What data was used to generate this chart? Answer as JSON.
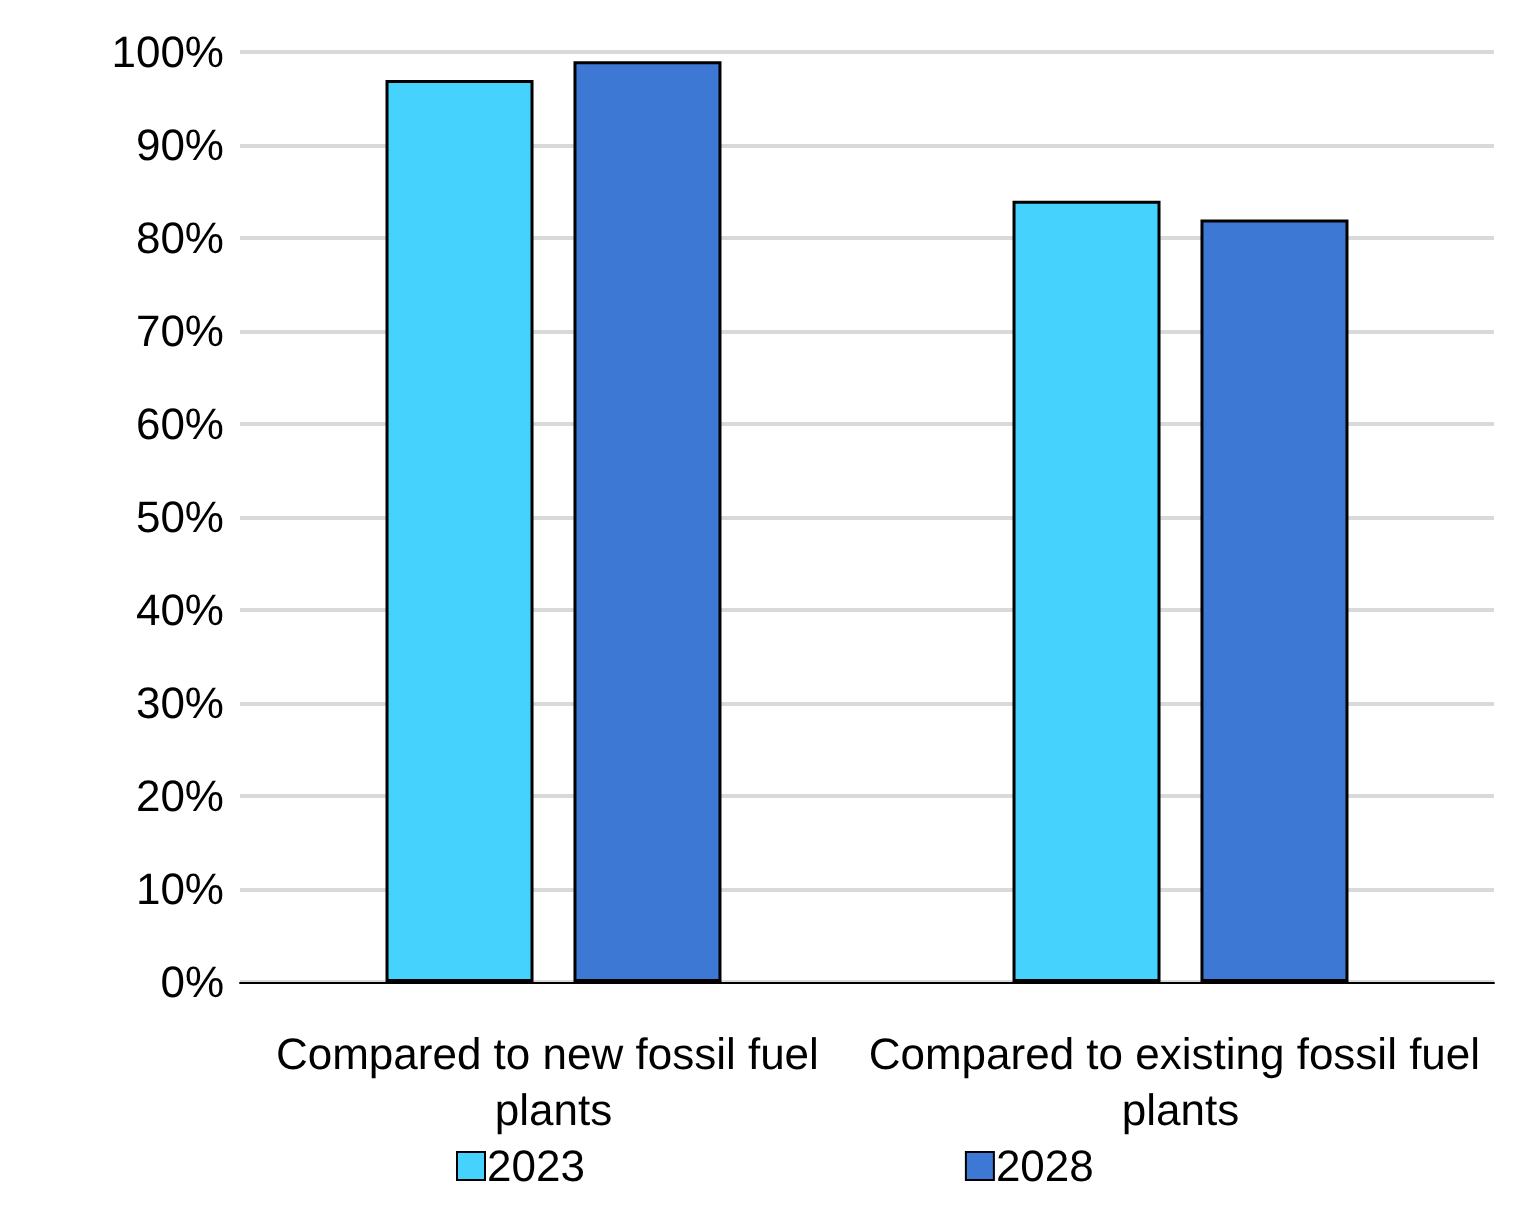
{
  "chart_data": {
    "type": "bar",
    "categories": [
      "Compared to new fossil fuel plants",
      "Compared to existing fossil fuel plants"
    ],
    "series": [
      {
        "name": "2023",
        "color": "#45d3fd",
        "values": [
          97,
          84
        ]
      },
      {
        "name": "2028",
        "color": "#3c78d4",
        "values": [
          99,
          82
        ]
      }
    ],
    "ylim": [
      0,
      100
    ],
    "yticks": [
      {
        "value": 0,
        "label": "0%"
      },
      {
        "value": 10,
        "label": "10%"
      },
      {
        "value": 20,
        "label": "20%"
      },
      {
        "value": 30,
        "label": "30%"
      },
      {
        "value": 40,
        "label": "40%"
      },
      {
        "value": 50,
        "label": "50%"
      },
      {
        "value": 60,
        "label": "60%"
      },
      {
        "value": 70,
        "label": "70%"
      },
      {
        "value": 80,
        "label": "80%"
      },
      {
        "value": 90,
        "label": "90%"
      },
      {
        "value": 100,
        "label": "100%"
      }
    ],
    "grid": "y",
    "legend": "bottom"
  }
}
